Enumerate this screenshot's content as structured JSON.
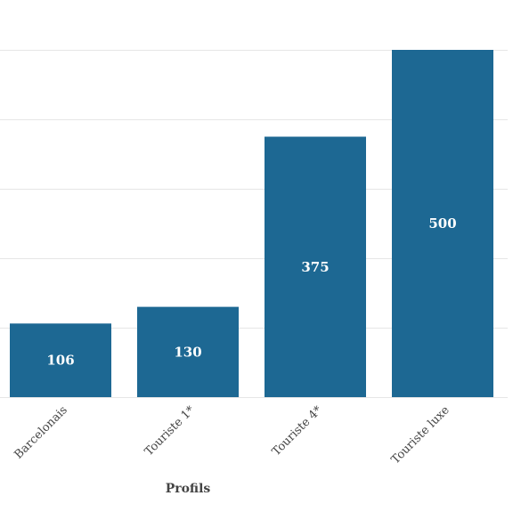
{
  "chart_data": {
    "type": "bar",
    "categories": [
      "Barcelonais",
      "Touriste 1*",
      "Touriste 4*",
      "Touriste luxe"
    ],
    "values": [
      106,
      130,
      375,
      500
    ],
    "title": "",
    "xlabel": "Profils",
    "ylabel": "",
    "ylim": [
      0,
      500
    ],
    "grid": true,
    "colors": {
      "bar": "#1d6893",
      "label": "#ffffff",
      "grid": "#e6e6e6"
    }
  }
}
